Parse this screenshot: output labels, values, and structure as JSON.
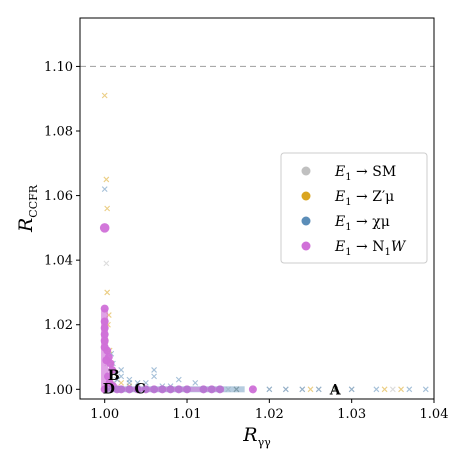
{
  "chart_data": {
    "type": "scatter",
    "xlabel": "R",
    "xlabel_sub": "γγ",
    "ylabel": "R",
    "ylabel_sub": "CCFR",
    "xlim": [
      0.997,
      1.04
    ],
    "ylim": [
      0.997,
      1.115
    ],
    "x_ticks": [
      1.0,
      1.01,
      1.02,
      1.03,
      1.04
    ],
    "x_tick_labels": [
      "1.00",
      "1.01",
      "1.02",
      "1.03",
      "1.04"
    ],
    "y_ticks": [
      1.0,
      1.02,
      1.04,
      1.06,
      1.08,
      1.1
    ],
    "y_tick_labels": [
      "1.00",
      "1.02",
      "1.04",
      "1.06",
      "1.08",
      "1.10"
    ],
    "hline": {
      "y": 1.1,
      "color": "#aaaaaa",
      "style": "dashed"
    },
    "grid": false,
    "legend_position": "right",
    "legend": [
      {
        "label_main": "E",
        "label_sub": "1",
        "label_rest": " → SM",
        "color": "#c0c0c0"
      },
      {
        "label_main": "E",
        "label_sub": "1",
        "label_rest": " → Z′μ",
        "color": "#daa520"
      },
      {
        "label_main": "E",
        "label_sub": "1",
        "label_rest": " → χμ",
        "color": "#5b8db8"
      },
      {
        "label_main": "E",
        "label_sub": "1",
        "label_rest": " → N",
        "label_sub2": "1",
        "label_rest2": "W",
        "color": "#d070d8"
      }
    ],
    "series": [
      {
        "name": "E1 → SM",
        "color": "#c0c0c0",
        "marker": "x",
        "x": [
          1.0,
          1.0005,
          1.001,
          1.002,
          1.003,
          1.004,
          1.005,
          1.006,
          1.008,
          1.01,
          1.012,
          1.015,
          1.018,
          1.02,
          1.022,
          1.024,
          1.026,
          1.03,
          1.035,
          1.0003,
          1.0008,
          1.0012,
          1.0002
        ],
        "y": [
          1.0,
          1.0,
          1.0,
          1.0,
          1.0,
          1.0,
          1.0,
          1.0,
          1.0,
          1.0,
          1.0,
          1.0,
          1.0,
          1.0,
          1.0,
          1.0,
          1.0,
          1.0,
          1.0,
          1.008,
          1.004,
          1.002,
          1.039
        ]
      },
      {
        "name": "E1 → Z′μ",
        "color": "#daa520",
        "marker": "x",
        "x": [
          1.0,
          1.0002,
          1.0003,
          1.0005,
          1.0004,
          1.0001,
          1.0006,
          1.001,
          1.002,
          1.003,
          1.016,
          1.025,
          1.028,
          1.034,
          1.036,
          1.0008,
          1.0003
        ],
        "y": [
          1.091,
          1.065,
          1.056,
          1.023,
          1.02,
          1.015,
          1.012,
          1.005,
          1.002,
          1.001,
          1.0,
          1.0,
          1.0,
          1.0,
          1.0,
          1.008,
          1.03
        ]
      },
      {
        "name": "E1 → χμ",
        "color": "#5b8db8",
        "marker": "x",
        "x": [
          1.0005,
          1.001,
          1.0015,
          1.002,
          1.003,
          1.004,
          1.005,
          1.006,
          1.007,
          1.008,
          1.009,
          1.01,
          1.012,
          1.014,
          1.016,
          1.018,
          1.02,
          1.022,
          1.024,
          1.026,
          1.028,
          1.03,
          1.033,
          1.037,
          1.039,
          1.0015,
          1.002,
          1.003,
          1.004,
          1.005,
          1.006,
          1.007,
          1.008,
          1.002,
          1.003,
          1.001,
          1.0012,
          1.0008,
          1.006,
          1.009,
          1.011,
          1.0
        ],
        "y": [
          1.0,
          1.0,
          1.0,
          1.0,
          1.0,
          1.0,
          1.0,
          1.0,
          1.0,
          1.0,
          1.0,
          1.0,
          1.0,
          1.0,
          1.0,
          1.0,
          1.0,
          1.0,
          1.0,
          1.0,
          1.0,
          1.0,
          1.0,
          1.0,
          1.0,
          1.003,
          1.004,
          1.003,
          1.002,
          1.002,
          1.004,
          1.001,
          1.001,
          1.006,
          1.002,
          1.008,
          1.005,
          1.011,
          1.006,
          1.003,
          1.002,
          1.062
        ]
      },
      {
        "name": "E1 → N1W",
        "color": "#d070d8",
        "marker": "o",
        "x": [
          1.0,
          1.0,
          1.0,
          1.0,
          1.0,
          1.0,
          1.0,
          1.0003,
          1.0005,
          1.0007,
          1.0009,
          1.0004,
          1.0006,
          1.001,
          1.0015,
          1.002,
          1.003,
          1.004,
          1.005,
          1.006,
          1.007,
          1.008,
          1.009,
          1.01,
          1.012,
          1.013,
          1.014,
          1.018,
          1.0,
          1.0002
        ],
        "y": [
          1.05,
          1.025,
          1.021,
          1.019,
          1.017,
          1.015,
          1.013,
          1.012,
          1.01,
          1.008,
          1.006,
          1.004,
          1.002,
          1.001,
          1.0,
          1.0,
          1.0,
          1.0,
          1.0,
          1.0,
          1.0,
          1.0,
          1.0,
          1.0,
          1.0,
          1.0,
          1.0,
          1.0,
          1.0,
          1.009
        ]
      }
    ],
    "annotations": [
      {
        "text": "A",
        "x": 1.028,
        "y": 0.99995
      },
      {
        "text": "B",
        "x": 1.0011,
        "y": 1.0044
      },
      {
        "text": "C",
        "x": 1.0043,
        "y": 1.0002
      },
      {
        "text": "D",
        "x": 1.0005,
        "y": 1.0002
      }
    ]
  }
}
